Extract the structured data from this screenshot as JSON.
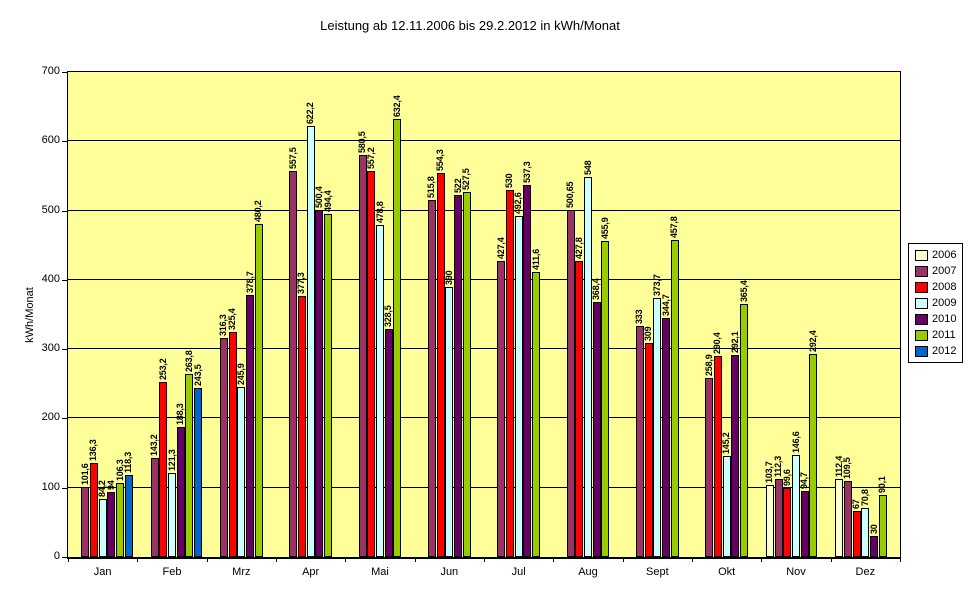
{
  "chart_data": {
    "type": "bar",
    "title": "Leistung ab 12.11.2006 bis 29.2.2012 in kWh/Monat",
    "xlabel": "",
    "ylabel": "kWh/Monat",
    "ylim": [
      0,
      700
    ],
    "ytick_step": 100,
    "grid": true,
    "plot_background": "#FFFF99",
    "gridline_color": "#000000",
    "legend_position": "right",
    "decimal_separator": ",",
    "categories": [
      "Jan",
      "Feb",
      "Mrz",
      "Apr",
      "Mai",
      "Jun",
      "Jul",
      "Aug",
      "Sept",
      "Okt",
      "Nov",
      "Dez"
    ],
    "series": [
      {
        "name": "2006",
        "color": "#FFFFCC",
        "values": [
          null,
          null,
          null,
          null,
          null,
          null,
          null,
          null,
          null,
          null,
          103.7,
          112.4
        ]
      },
      {
        "name": "2007",
        "color": "#993366",
        "values": [
          101.6,
          143.2,
          316.3,
          557.5,
          580.5,
          515.8,
          427.4,
          500.65,
          333,
          258.9,
          112.3,
          109.5
        ]
      },
      {
        "name": "2008",
        "color": "#FF0000",
        "values": [
          136.3,
          253.2,
          325.4,
          377.3,
          557.2,
          554.3,
          530,
          427.8,
          309,
          290.4,
          99.6,
          67
        ]
      },
      {
        "name": "2009",
        "color": "#CCFFFF",
        "values": [
          84.2,
          121.3,
          245.9,
          622.2,
          478.8,
          390,
          492.6,
          548,
          373.7,
          145.2,
          146.6,
          70.8
        ]
      },
      {
        "name": "2010",
        "color": "#660066",
        "values": [
          94,
          188.3,
          378.7,
          500.4,
          328.5,
          522,
          537.3,
          368.4,
          344.7,
          292.1,
          94.7,
          30
        ]
      },
      {
        "name": "2011",
        "color": "#99CC00",
        "values": [
          106.3,
          263.8,
          480.2,
          494.4,
          632.4,
          527.5,
          411.6,
          455.9,
          457.8,
          365.4,
          292.4,
          90.1
        ]
      },
      {
        "name": "2012",
        "color": "#0066CC",
        "values": [
          118.3,
          243.5,
          null,
          null,
          null,
          null,
          null,
          null,
          null,
          null,
          null,
          null
        ]
      }
    ]
  }
}
